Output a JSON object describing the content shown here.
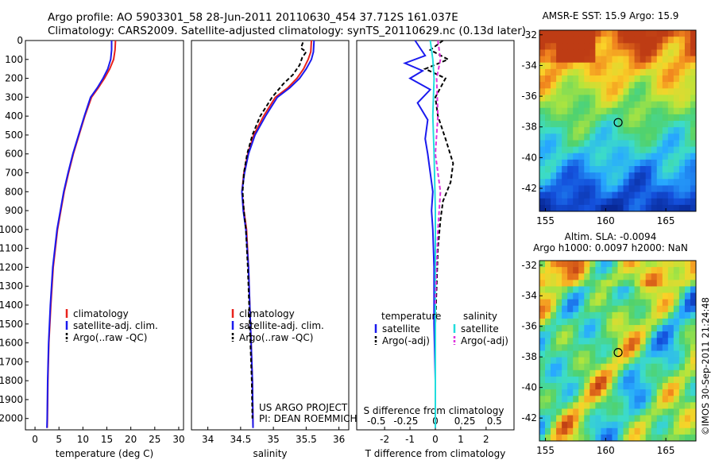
{
  "header": {
    "line1": "Argo profile: AO 5903301_58 28-Jun-2011 20110630_454 37.712S 161.037E",
    "line2": "Climatology: CARS2009. Satellite-adjusted climatology: synTS_20110629.nc (0.13d later)"
  },
  "credit": "©IMOS 30-Sep-2011 21:24:48",
  "colors": {
    "clim": "#e8221c",
    "sat": "#1a1aee",
    "argo": "#000000",
    "salsat": "#22dddd",
    "salargo": "#dd33dd"
  },
  "chart_data": [
    {
      "type": "line",
      "xlabel": "temperature (deg C)",
      "ylabel": "",
      "xlim": [
        -2,
        31
      ],
      "ylim": [
        2060,
        0
      ],
      "xticks": [
        0,
        5,
        10,
        15,
        20,
        25,
        30
      ],
      "yticks": [
        0,
        100,
        200,
        300,
        400,
        500,
        600,
        700,
        800,
        900,
        1000,
        1100,
        1200,
        1300,
        1400,
        1500,
        1600,
        1700,
        1800,
        1900,
        2000
      ],
      "legend": [
        "climatology",
        "satellite-adj. clim.",
        "Argo(..raw -QC)"
      ],
      "series": [
        {
          "name": "climatology",
          "color": "clim",
          "dash": "",
          "x": [
            16.8,
            16.7,
            16.4,
            15.6,
            14.5,
            13.2,
            11.8,
            10.4,
            9.2,
            8.0,
            7.0,
            6.1,
            5.4,
            4.7,
            3.8,
            3.3,
            2.9,
            2.7,
            2.6,
            2.55
          ],
          "y": [
            0,
            50,
            100,
            150,
            200,
            250,
            300,
            400,
            500,
            600,
            700,
            800,
            900,
            1000,
            1200,
            1400,
            1600,
            1800,
            2000,
            2050
          ]
        },
        {
          "name": "satellite-adj. clim.",
          "color": "sat",
          "dash": "",
          "x": [
            16.0,
            16.0,
            15.8,
            15.2,
            14.2,
            13.0,
            11.6,
            10.3,
            9.1,
            7.9,
            6.9,
            6.0,
            5.3,
            4.6,
            3.7,
            3.2,
            2.85,
            2.65,
            2.55,
            2.5
          ],
          "y": [
            0,
            50,
            100,
            150,
            200,
            250,
            300,
            400,
            500,
            600,
            700,
            800,
            900,
            1000,
            1200,
            1400,
            1600,
            1800,
            2000,
            2050
          ]
        }
      ]
    },
    {
      "type": "line",
      "xlabel": "salinity",
      "ylabel": "",
      "xlim": [
        33.75,
        36.15
      ],
      "ylim": [
        2060,
        0
      ],
      "xticks": [
        34,
        34.5,
        35,
        35.5,
        36
      ],
      "yticks": [],
      "legend": [
        "climatology",
        "satellite-adj. clim.",
        "Argo(..raw -QC)"
      ],
      "series": [
        {
          "name": "climatology",
          "color": "clim",
          "dash": "",
          "x": [
            35.58,
            35.57,
            35.53,
            35.46,
            35.36,
            35.22,
            35.03,
            34.85,
            34.7,
            34.61,
            34.55,
            34.52,
            34.55,
            34.59,
            34.62,
            34.64,
            34.66,
            34.68,
            34.69
          ],
          "y": [
            0,
            60,
            100,
            150,
            200,
            250,
            300,
            400,
            500,
            600,
            700,
            800,
            900,
            1000,
            1200,
            1400,
            1600,
            1800,
            2050
          ]
        },
        {
          "name": "satellite-adj. clim.",
          "color": "sat",
          "dash": "",
          "x": [
            35.62,
            35.61,
            35.58,
            35.5,
            35.4,
            35.25,
            35.06,
            34.88,
            34.72,
            34.62,
            34.56,
            34.52,
            34.54,
            34.58,
            34.62,
            34.64,
            34.66,
            34.68,
            34.69
          ],
          "y": [
            0,
            60,
            100,
            150,
            200,
            250,
            300,
            400,
            500,
            600,
            700,
            800,
            900,
            1000,
            1200,
            1400,
            1600,
            1800,
            2050
          ]
        },
        {
          "name": "Argo(..raw -QC)",
          "color": "argo",
          "dash": "5,3",
          "x": [
            35.45,
            35.42,
            35.5,
            35.44,
            35.4,
            35.3,
            35.15,
            34.98,
            34.8,
            34.68,
            34.6,
            34.55,
            34.53,
            34.55,
            34.58,
            34.61,
            34.63,
            34.65,
            34.67,
            34.68
          ],
          "y": [
            10,
            40,
            60,
            90,
            130,
            180,
            230,
            300,
            400,
            500,
            600,
            700,
            800,
            900,
            1000,
            1200,
            1400,
            1600,
            1800,
            2000
          ]
        }
      ]
    },
    {
      "type": "line",
      "xlabel": "T difference from climatology",
      "ylabel": "",
      "xlim": [
        -3.1,
        3.1
      ],
      "ylim": [
        2060,
        0
      ],
      "xticks": [
        -2,
        -1,
        0,
        1,
        2
      ],
      "yticks": [],
      "secondary_label": "S difference from climatology",
      "secondary_ticks": [
        -0.5,
        -0.25,
        0,
        0.25,
        0.5
      ],
      "legend_titles": [
        "temperature",
        "salinity"
      ],
      "legend": [
        "satellite",
        "Argo(-adj)",
        "satellite",
        "Argo(-adj)"
      ],
      "series": [
        {
          "name": "satellite",
          "color": "sat",
          "dash": "",
          "x": [
            -0.8,
            -0.6,
            -0.4,
            -1.2,
            -0.5,
            -1.0,
            -0.2,
            -0.7,
            -0.3,
            -0.4,
            -0.3,
            -0.2,
            -0.1,
            -0.15,
            -0.1,
            -0.05,
            -0.05,
            0,
            0
          ],
          "y": [
            0,
            40,
            80,
            120,
            160,
            200,
            260,
            330,
            420,
            520,
            600,
            700,
            800,
            900,
            1000,
            1200,
            1500,
            1800,
            2050
          ]
        },
        {
          "name": "Argo(-adj)",
          "color": "argo",
          "dash": "5,3",
          "x": [
            0.3,
            -0.2,
            0.5,
            -0.4,
            0.4,
            0.2,
            0.0,
            0.1,
            0.4,
            0.7,
            0.6,
            0.3,
            0.2,
            0.1,
            0.05,
            0
          ],
          "y": [
            0,
            50,
            100,
            150,
            200,
            250,
            300,
            400,
            520,
            650,
            750,
            850,
            950,
            1100,
            1300,
            1500
          ]
        },
        {
          "name": "satellite",
          "color": "salsat",
          "dash": "",
          "x": [
            -0.2,
            -0.1,
            -0.05,
            -0.1,
            -0.05,
            0,
            0,
            0,
            0
          ],
          "y": [
            0,
            100,
            200,
            400,
            600,
            900,
            1200,
            1600,
            2050
          ]
        },
        {
          "name": "Argo(-adj)",
          "color": "salargo",
          "dash": "5,3",
          "x": [
            0.1,
            0.2,
            0.05,
            0.1,
            0.0,
            0.2,
            0.1,
            0.05,
            0
          ],
          "y": [
            0,
            100,
            200,
            400,
            600,
            800,
            1000,
            1200,
            1400
          ]
        }
      ]
    }
  ],
  "maps": [
    {
      "title": "AMSR-E SST: 15.9  Argo: 15.9",
      "title2": "",
      "yticks": [
        -32,
        -34,
        -36,
        -38,
        -40,
        -42
      ],
      "xticks": [
        155,
        160,
        165
      ],
      "marker": {
        "lon": 161.037,
        "lat": -37.712
      },
      "lonlim": [
        154.5,
        167.5
      ],
      "latlim": [
        -43.5,
        -31.7
      ]
    },
    {
      "title": "Altim. SLA: -0.0094",
      "title2": "Argo h1000: 0.0097  h2000: NaN",
      "yticks": [
        -32,
        -34,
        -36,
        -38,
        -40,
        -42
      ],
      "xticks": [
        155,
        160,
        165
      ],
      "marker": {
        "lon": 161.037,
        "lat": -37.712
      },
      "lonlim": [
        154.5,
        167.5
      ],
      "latlim": [
        -43.5,
        -31.7
      ]
    }
  ],
  "annotations": {
    "project": "US ARGO PROJECT",
    "pi": "PI: DEAN ROEMMICH"
  }
}
